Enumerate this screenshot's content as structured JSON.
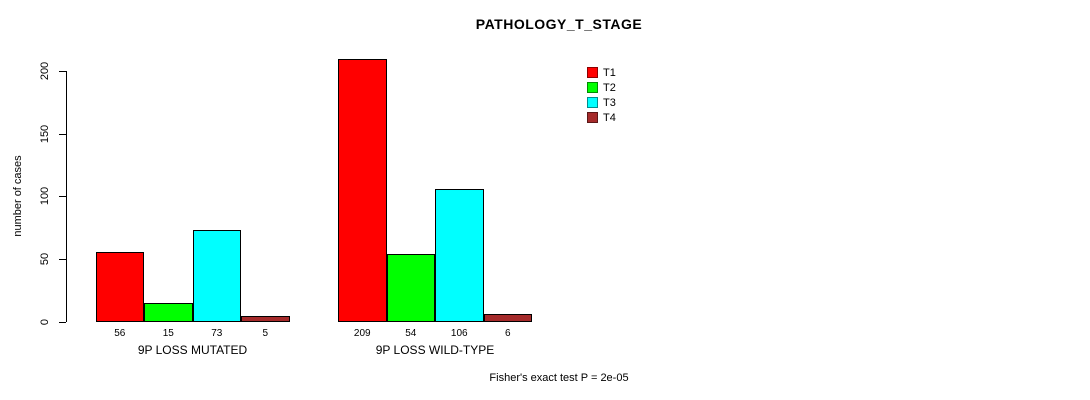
{
  "chart_data": {
    "type": "bar",
    "title": "PATHOLOGY_T_STAGE",
    "ylabel": "number of cases",
    "xlabel": "",
    "ylim": [
      0,
      200
    ],
    "yticks": [
      0,
      50,
      100,
      150,
      200
    ],
    "grid": false,
    "legend_position": "top-right",
    "categories": [
      "9P LOSS MUTATED",
      "9P LOSS WILD-TYPE"
    ],
    "series": [
      {
        "name": "T1",
        "color": "#ff0000",
        "values": [
          56,
          209
        ]
      },
      {
        "name": "T2",
        "color": "#00ff00",
        "values": [
          15,
          54
        ]
      },
      {
        "name": "T3",
        "color": "#00ffff",
        "values": [
          73,
          106
        ]
      },
      {
        "name": "T4",
        "color": "#a52a2a",
        "values": [
          5,
          6
        ]
      }
    ],
    "bar_value_labels": [
      [
        "56",
        "15",
        "73",
        "5"
      ],
      [
        "209",
        "54",
        "106",
        "6"
      ]
    ],
    "annotation": "Fisher's exact test P = 2e-05"
  }
}
